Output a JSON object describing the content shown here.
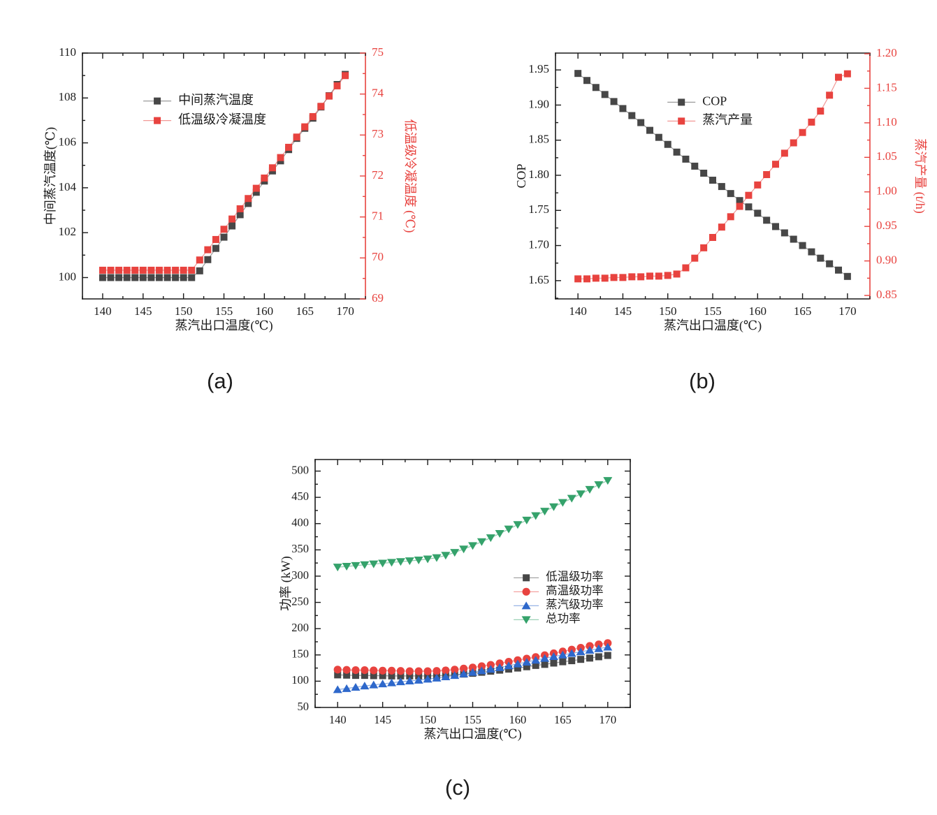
{
  "captions": {
    "a": "(a)",
    "b": "(b)",
    "c": "(c)"
  },
  "colors": {
    "frame": "#1a1a1a",
    "black_series": "#474747",
    "red_series": "#e8433f",
    "blue_series": "#2e68cb",
    "green_series": "#35a26b"
  },
  "chart_data": [
    {
      "id": "a",
      "type": "line",
      "x_axis": {
        "label": "蒸汽出口温度(℃)",
        "range": [
          137.5,
          172.5
        ],
        "ticks": [
          140,
          145,
          150,
          155,
          160,
          165,
          170
        ],
        "minor_step": 2.5,
        "decimals": 0
      },
      "left_axis": {
        "label": "中间蒸汽温度(℃)",
        "range": [
          99.05,
          110
        ],
        "ticks": [
          100,
          102,
          104,
          106,
          108,
          110
        ],
        "minor_step": 1,
        "decimals": 0
      },
      "right_axis": {
        "label": "低温级冷凝温度 (℃)",
        "range": [
          69,
          75
        ],
        "ticks": [
          69,
          70,
          71,
          72,
          73,
          74,
          75
        ],
        "minor_step": 0.5,
        "decimals": 0,
        "color": "#e8433f"
      },
      "x": [
        140,
        141,
        142,
        143,
        144,
        145,
        146,
        147,
        148,
        149,
        150,
        151,
        152,
        153,
        154,
        155,
        156,
        157,
        158,
        159,
        160,
        161,
        162,
        163,
        164,
        165,
        166,
        167,
        168,
        169,
        170
      ],
      "series": [
        {
          "name": "中间蒸汽温度",
          "axis": "left",
          "color": "#474747",
          "marker": "square",
          "values": [
            100,
            100,
            100,
            100,
            100,
            100,
            100,
            100,
            100,
            100,
            100,
            100,
            100.3,
            100.8,
            101.3,
            101.8,
            102.3,
            102.8,
            103.3,
            103.8,
            104.3,
            104.75,
            105.2,
            105.7,
            106.2,
            106.65,
            107.1,
            107.6,
            108.1,
            108.6,
            109.05
          ]
        },
        {
          "name": "低温级冷凝温度",
          "axis": "right",
          "color": "#e8433f",
          "marker": "square",
          "values": [
            69.7,
            69.7,
            69.7,
            69.7,
            69.7,
            69.7,
            69.7,
            69.7,
            69.7,
            69.7,
            69.7,
            69.7,
            69.95,
            70.2,
            70.45,
            70.7,
            70.95,
            71.2,
            71.45,
            71.7,
            71.95,
            72.2,
            72.45,
            72.7,
            72.95,
            73.2,
            73.45,
            73.7,
            73.95,
            74.2,
            74.45
          ]
        }
      ]
    },
    {
      "id": "b",
      "type": "line",
      "x_axis": {
        "label": "蒸汽出口温度(℃)",
        "range": [
          137.5,
          172.5
        ],
        "ticks": [
          140,
          145,
          150,
          155,
          160,
          165,
          170
        ],
        "minor_step": 2.5,
        "decimals": 0
      },
      "left_axis": {
        "label": "COP",
        "range": [
          1.624,
          1.974
        ],
        "ticks": [
          1.65,
          1.7,
          1.75,
          1.8,
          1.85,
          1.9,
          1.95
        ],
        "minor_step": 0.025,
        "decimals": 2
      },
      "right_axis": {
        "label": "蒸汽产量 (t/h)",
        "range": [
          0.845,
          1.201
        ],
        "ticks": [
          0.85,
          0.9,
          0.95,
          1.0,
          1.05,
          1.1,
          1.15,
          1.2
        ],
        "minor_step": 0.025,
        "decimals": 2,
        "color": "#e8433f"
      },
      "x": [
        140,
        141,
        142,
        143,
        144,
        145,
        146,
        147,
        148,
        149,
        150,
        151,
        152,
        153,
        154,
        155,
        156,
        157,
        158,
        159,
        160,
        161,
        162,
        163,
        164,
        165,
        166,
        167,
        168,
        169,
        170
      ],
      "series": [
        {
          "name": "COP",
          "axis": "left",
          "color": "#474747",
          "marker": "square",
          "values": [
            1.945,
            1.935,
            1.925,
            1.915,
            1.905,
            1.895,
            1.885,
            1.875,
            1.864,
            1.854,
            1.844,
            1.833,
            1.823,
            1.813,
            1.803,
            1.793,
            1.784,
            1.774,
            1.764,
            1.755,
            1.746,
            1.736,
            1.727,
            1.718,
            1.709,
            1.7,
            1.691,
            1.682,
            1.674,
            1.665,
            1.656
          ]
        },
        {
          "name": "蒸汽产量",
          "axis": "right",
          "color": "#e8433f",
          "marker": "square",
          "values": [
            0.874,
            0.874,
            0.875,
            0.875,
            0.876,
            0.876,
            0.877,
            0.877,
            0.878,
            0.878,
            0.879,
            0.881,
            0.89,
            0.904,
            0.919,
            0.934,
            0.949,
            0.964,
            0.979,
            0.995,
            1.01,
            1.025,
            1.04,
            1.056,
            1.071,
            1.086,
            1.101,
            1.117,
            1.14,
            1.166,
            1.171
          ]
        }
      ]
    },
    {
      "id": "c",
      "type": "line",
      "x_axis": {
        "label": "蒸汽出口温度(℃)",
        "range": [
          137.5,
          172.5
        ],
        "ticks": [
          140,
          145,
          150,
          155,
          160,
          165,
          170
        ],
        "minor_step": 2.5,
        "decimals": 0
      },
      "left_axis": {
        "label": "功率 (kW)",
        "range": [
          50,
          522
        ],
        "ticks": [
          50,
          100,
          150,
          200,
          250,
          300,
          350,
          400,
          450,
          500
        ],
        "minor_step": 25,
        "decimals": 0
      },
      "right_axis": null,
      "x": [
        140,
        141,
        142,
        143,
        144,
        145,
        146,
        147,
        148,
        149,
        150,
        151,
        152,
        153,
        154,
        155,
        156,
        157,
        158,
        159,
        160,
        161,
        162,
        163,
        164,
        165,
        166,
        167,
        168,
        169,
        170
      ],
      "series": [
        {
          "name": "低温级功率",
          "axis": "left",
          "color": "#474747",
          "marker": "square",
          "values": [
            112,
            111.5,
            111,
            111,
            110.5,
            110.5,
            110,
            110,
            110,
            110,
            110,
            110.5,
            111,
            112,
            113.5,
            115,
            117,
            119,
            121,
            123,
            125,
            127.5,
            130,
            132,
            134.5,
            137,
            139,
            141.5,
            144,
            146.5,
            149
          ]
        },
        {
          "name": "高温级功率",
          "axis": "left",
          "color": "#e8433f",
          "marker": "circle",
          "values": [
            122,
            121.5,
            121,
            121,
            120.5,
            120,
            120,
            119.5,
            119,
            119,
            119,
            119.5,
            120.5,
            122,
            124,
            126,
            128.5,
            131,
            134,
            137,
            140,
            143,
            146,
            149.5,
            153,
            156.5,
            160,
            163.5,
            167,
            170,
            172.5
          ]
        },
        {
          "name": "蒸汽级功率",
          "axis": "left",
          "color": "#2e68cb",
          "marker": "triangle-up",
          "values": [
            84,
            86,
            88.5,
            91,
            93,
            95,
            97,
            99,
            100.5,
            102,
            104,
            106,
            108.5,
            111,
            114,
            117,
            120,
            123,
            126,
            129.5,
            133,
            136.5,
            140,
            143.5,
            147,
            150,
            153,
            156,
            159,
            162,
            165
          ]
        },
        {
          "name": "总功率",
          "axis": "left",
          "color": "#35a26b",
          "marker": "triangle-down",
          "values": [
            317,
            318.5,
            320,
            321.5,
            323,
            324.5,
            326,
            327.5,
            329,
            330.5,
            332.5,
            335,
            339.5,
            345,
            351.5,
            358,
            365.5,
            373,
            381,
            389.5,
            398,
            406.5,
            415,
            423.5,
            432,
            440,
            448,
            456.5,
            465,
            474,
            482
          ]
        }
      ]
    }
  ]
}
